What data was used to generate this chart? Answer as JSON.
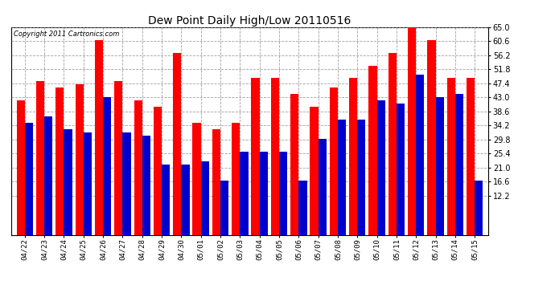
{
  "title": "Dew Point Daily High/Low 20110516",
  "copyright": "Copyright 2011 Cartronics.com",
  "dates": [
    "04/22",
    "04/23",
    "04/24",
    "04/25",
    "04/26",
    "04/27",
    "04/28",
    "04/29",
    "04/30",
    "05/01",
    "05/02",
    "05/03",
    "05/04",
    "05/05",
    "05/06",
    "05/07",
    "05/08",
    "05/09",
    "05/10",
    "05/11",
    "05/12",
    "05/13",
    "05/14",
    "05/15"
  ],
  "highs": [
    42,
    48,
    46,
    47,
    61,
    48,
    42,
    40,
    57,
    35,
    33,
    35,
    49,
    49,
    44,
    40,
    46,
    49,
    53,
    57,
    66,
    61,
    49,
    49
  ],
  "lows": [
    35,
    37,
    33,
    32,
    43,
    32,
    31,
    22,
    22,
    23,
    17,
    26,
    26,
    26,
    17,
    30,
    36,
    36,
    42,
    41,
    50,
    43,
    44,
    17
  ],
  "high_color": "#ff0000",
  "low_color": "#0000cc",
  "bg_color": "#ffffff",
  "plot_bg_color": "#ffffff",
  "grid_color": "#888888",
  "ymin": 0,
  "ymax": 65.0,
  "ylim_display_min": 12.2,
  "yticks": [
    12.2,
    16.6,
    21.0,
    25.4,
    29.8,
    34.2,
    38.6,
    43.0,
    47.4,
    51.8,
    56.2,
    60.6,
    65.0
  ],
  "bar_width": 0.42,
  "title_fontsize": 10,
  "tick_fontsize": 6.5,
  "copyright_fontsize": 6
}
